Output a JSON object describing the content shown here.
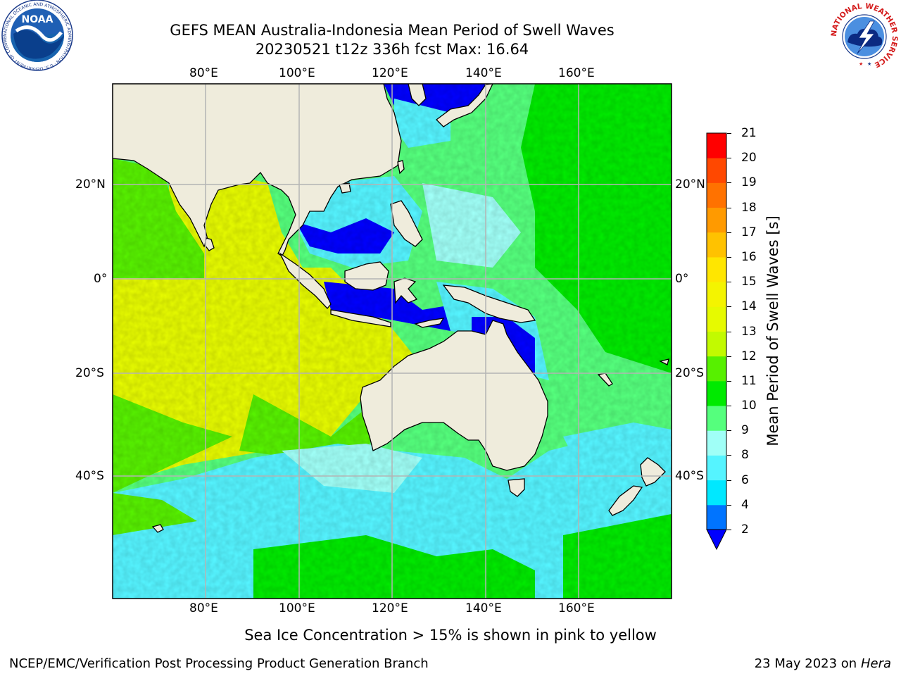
{
  "title": {
    "line1": "GEFS MEAN Australia-Indonesia Mean Period of Swell Waves",
    "line2": "20230521 t12z 336h fcst   Max: 16.64"
  },
  "map": {
    "region": "Australia-Indonesia",
    "lon_labels": [
      "80°E",
      "100°E",
      "120°E",
      "140°E",
      "160°E"
    ],
    "lat_labels": [
      "20°N",
      "0°",
      "20°S",
      "40°S"
    ],
    "colors": {
      "land": "#efecdc",
      "gridline": "#b4b4b4",
      "coastline": "#000000"
    }
  },
  "colorbar": {
    "label": "Mean Period of Swell Waves [s]",
    "ticks": [
      "2",
      "4",
      "6",
      "8",
      "9",
      "10",
      "11",
      "12",
      "13",
      "14",
      "15",
      "16",
      "17",
      "18",
      "19",
      "20",
      "21"
    ],
    "colors": [
      "#0074ff",
      "#00e8ff",
      "#55f4ff",
      "#a0fff7",
      "#55ff7d",
      "#00ea00",
      "#57f000",
      "#c2fa00",
      "#e6fa00",
      "#f4f400",
      "#ffe600",
      "#ffc200",
      "#ff9a00",
      "#ff7200",
      "#ff4800",
      "#ff0000"
    ],
    "under_color": "#0000ff"
  },
  "footer": {
    "note": "Sea Ice Concentration > 15% is shown in pink to yellow",
    "credit": "NCEP/EMC/Verification Post Processing Product Generation Branch",
    "date": "23 May 2023 on",
    "machine": "Hera"
  },
  "logos": {
    "left": "NOAA",
    "left_ring_text": "NATIONAL OCEANIC AND ATMOSPHERIC ADMINISTRATION · U.S. DEPARTMENT OF COMMERCE ·",
    "right_ring_text": "NATIONAL WEATHER SERVICE"
  }
}
